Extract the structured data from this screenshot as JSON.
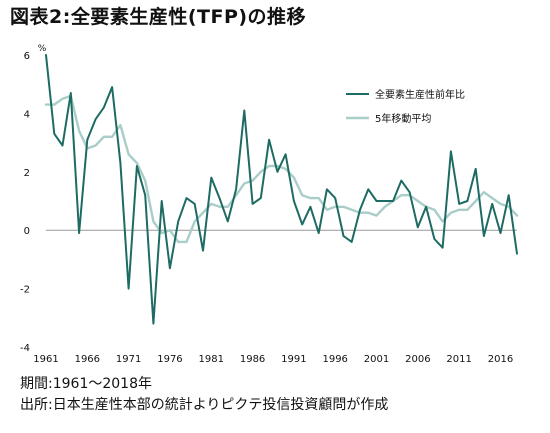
{
  "title": "図表2:全要素生産性(TFP)の推移",
  "notes": {
    "period": "期間:1961〜2018年",
    "source": "出所:日本生産性本部の統計よりピクテ投信投資顧問が作成"
  },
  "chart_data": {
    "type": "line",
    "unit": "%",
    "ylim": [
      -4,
      6
    ],
    "yticks": [
      -4,
      -2,
      0,
      2,
      4,
      6
    ],
    "xlim": [
      1961,
      2018
    ],
    "xticks": [
      1961,
      1966,
      1971,
      1976,
      1981,
      1986,
      1991,
      1996,
      2001,
      2006,
      2011,
      2016
    ],
    "grid": false,
    "legend_position": "top-right",
    "x": [
      1961,
      1962,
      1963,
      1964,
      1965,
      1966,
      1967,
      1968,
      1969,
      1970,
      1971,
      1972,
      1973,
      1974,
      1975,
      1976,
      1977,
      1978,
      1979,
      1980,
      1981,
      1982,
      1983,
      1984,
      1985,
      1986,
      1987,
      1988,
      1989,
      1990,
      1991,
      1992,
      1993,
      1994,
      1995,
      1996,
      1997,
      1998,
      1999,
      2000,
      2001,
      2002,
      2003,
      2004,
      2005,
      2006,
      2007,
      2008,
      2009,
      2010,
      2011,
      2012,
      2013,
      2014,
      2015,
      2016,
      2017,
      2018
    ],
    "series": [
      {
        "name": "全要素生産性前年比",
        "color": "#1d6b63",
        "values": [
          6.0,
          3.3,
          2.9,
          4.7,
          -0.1,
          3.1,
          3.8,
          4.2,
          4.9,
          2.3,
          -2.0,
          2.2,
          1.2,
          -3.2,
          1.0,
          -1.3,
          0.3,
          1.1,
          0.9,
          -0.7,
          1.8,
          1.1,
          0.3,
          1.4,
          4.1,
          0.9,
          1.1,
          3.1,
          2.0,
          2.6,
          1.0,
          0.2,
          0.8,
          -0.1,
          1.4,
          1.1,
          -0.2,
          -0.4,
          0.7,
          1.4,
          1.0,
          1.0,
          1.0,
          1.7,
          1.3,
          0.1,
          0.8,
          -0.3,
          -0.6,
          2.7,
          0.9,
          1.0,
          2.1,
          -0.2,
          0.9,
          -0.1,
          1.2,
          -0.8
        ]
      },
      {
        "name": "5年移動平均",
        "color": "#a9cdc8",
        "values": [
          4.3,
          4.3,
          4.5,
          4.6,
          3.4,
          2.8,
          2.9,
          3.2,
          3.2,
          3.6,
          2.6,
          2.3,
          1.7,
          0.3,
          -0.1,
          0.0,
          -0.4,
          -0.4,
          0.3,
          0.6,
          0.9,
          0.8,
          0.8,
          1.2,
          1.6,
          1.7,
          2.0,
          2.2,
          2.2,
          2.1,
          1.8,
          1.2,
          1.1,
          1.1,
          0.7,
          0.8,
          0.8,
          0.7,
          0.6,
          0.6,
          0.5,
          0.8,
          1.0,
          1.2,
          1.2,
          1.0,
          0.8,
          0.7,
          0.3,
          0.6,
          0.7,
          0.7,
          1.0,
          1.3,
          1.1,
          0.9,
          0.8,
          0.5
        ]
      }
    ]
  }
}
